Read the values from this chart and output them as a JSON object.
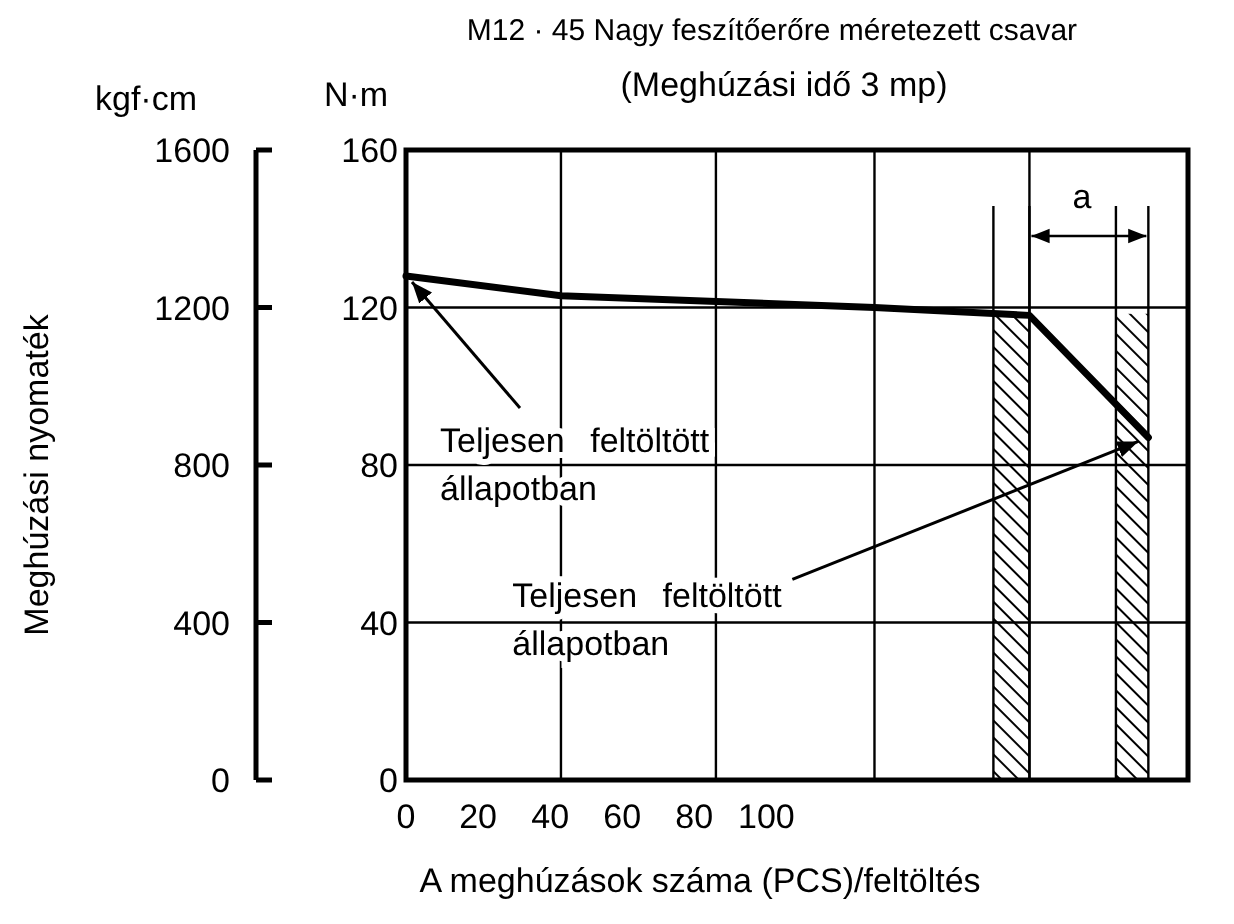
{
  "chart_data": {
    "type": "line",
    "title": "M12 · 45 Nagy feszítőerőre méretezett csavar",
    "subtitle": "(Meghúzási idő 3 mp)",
    "xlabel": "A meghúzások száma (PCS)/feltöltés",
    "ylabel": "N·m",
    "y2label": "kgf·cm",
    "x": [
      0,
      43,
      130,
      173,
      206
    ],
    "series": [
      {
        "color": "#000000",
        "values": [
          128,
          123,
          120,
          118,
          87
        ]
      }
    ],
    "xlim": [
      0,
      217
    ],
    "xticks": [
      0,
      20,
      40,
      60,
      80,
      100,
      {
        "value": 43,
        "label": null
      },
      {
        "value": 86,
        "label": null
      },
      {
        "value": 130,
        "label": null
      },
      {
        "value": 173,
        "label": null
      }
    ],
    "ylim": [
      0,
      160
    ],
    "yticks": [
      0,
      40,
      80,
      120,
      160
    ],
    "y2lim": [
      0,
      1600
    ],
    "y2ticks": [
      0,
      400,
      800,
      1200,
      1600
    ],
    "grid": true,
    "marker": "none",
    "line_style": "solid",
    "bands": [
      {
        "axis": "x",
        "from": 163,
        "to": 173
      },
      {
        "axis": "x",
        "from": 197,
        "to": 206
      }
    ],
    "annotations": [
      "Meghúzási nyomaték",
      "a",
      {
        "text": "Teljesen feltöltött\nállapotban",
        "x": 0,
        "y": 128
      },
      {
        "text": "Teljesen feltöltött\nállapotban",
        "x": 206,
        "y": 87
      }
    ]
  }
}
